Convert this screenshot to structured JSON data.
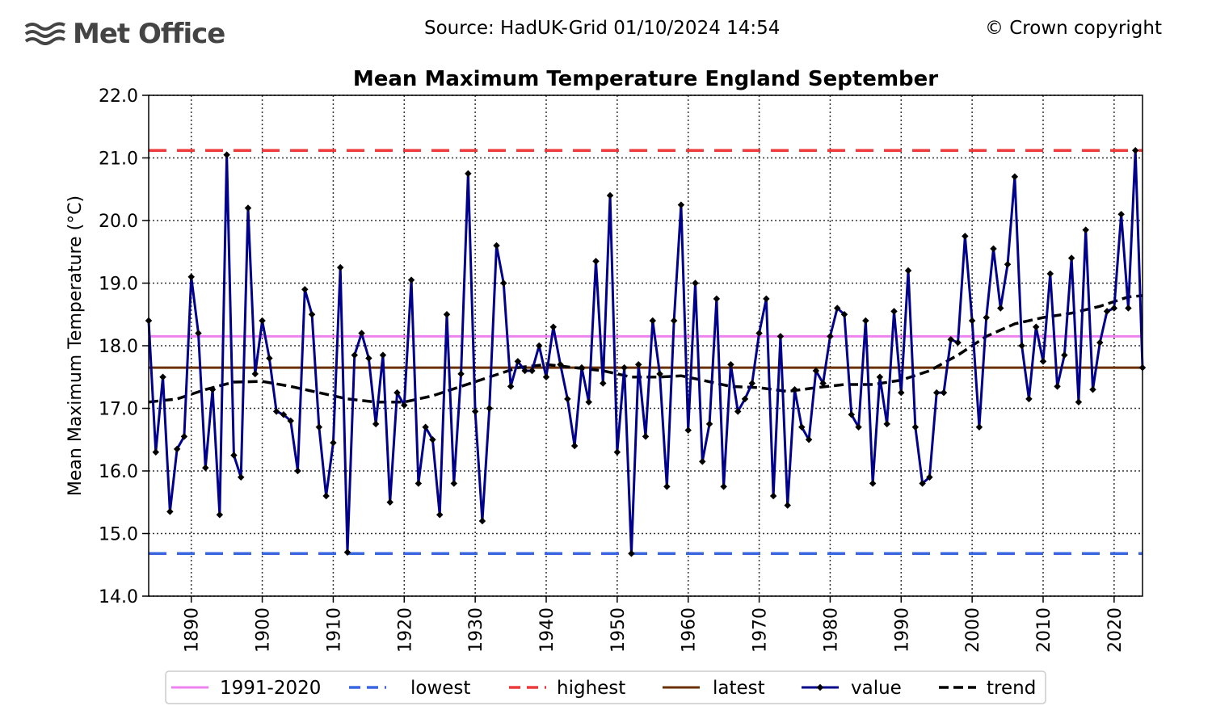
{
  "header": {
    "logo_text": "Met Office",
    "source": "Source: HadUK-Grid 01/10/2024 14:54",
    "copyright": "© Crown copyright"
  },
  "colors": {
    "baseline": "#ee82ee",
    "lowest": "#3a66e0",
    "highest": "#ee3a3a",
    "latest": "#6b3000",
    "value": "#00008b",
    "trend": "#000000"
  },
  "chart_data": {
    "type": "line",
    "title": "Mean Maximum Temperature England September",
    "xlabel": "",
    "ylabel": "Mean Maximum Temperature (°C)",
    "xlim": [
      1884,
      2024
    ],
    "ylim": [
      14.0,
      22.0
    ],
    "yticks": [
      "14.0",
      "15.0",
      "16.0",
      "17.0",
      "18.0",
      "19.0",
      "20.0",
      "21.0",
      "22.0"
    ],
    "xticks": [
      "1890",
      "1900",
      "1910",
      "1920",
      "1930",
      "1940",
      "1950",
      "1960",
      "1970",
      "1980",
      "1990",
      "2000",
      "2010",
      "2020"
    ],
    "grid": true,
    "legend_position": "bottom",
    "reference_lines": {
      "1991-2020": 18.15,
      "lowest": 14.68,
      "highest": 21.12,
      "latest": 17.65
    },
    "legend": [
      "1991-2020",
      "lowest",
      "highest",
      "latest",
      "value",
      "trend"
    ],
    "series": [
      {
        "name": "value",
        "start_year": 1884,
        "values": [
          18.4,
          16.3,
          17.5,
          15.35,
          16.35,
          16.55,
          19.1,
          18.2,
          16.05,
          17.3,
          15.3,
          21.05,
          16.25,
          15.9,
          20.2,
          17.55,
          18.4,
          17.8,
          16.95,
          16.9,
          16.8,
          16.0,
          18.9,
          18.5,
          16.7,
          15.6,
          16.45,
          19.25,
          14.7,
          17.85,
          18.2,
          17.8,
          16.75,
          17.85,
          15.5,
          17.25,
          17.05,
          19.05,
          15.8,
          16.7,
          16.5,
          15.3,
          18.5,
          15.8,
          17.55,
          20.75,
          16.95,
          15.2,
          17.0,
          19.6,
          19.0,
          17.35,
          17.75,
          17.6,
          17.6,
          18.0,
          17.5,
          18.3,
          17.7,
          17.15,
          16.4,
          17.65,
          17.1,
          19.35,
          17.4,
          20.4,
          16.3,
          17.65,
          14.68,
          17.7,
          16.55,
          18.4,
          17.55,
          15.75,
          18.4,
          20.25,
          16.65,
          19.0,
          16.15,
          16.75,
          18.75,
          15.75,
          17.7,
          16.95,
          17.15,
          17.4,
          18.2,
          18.75,
          15.6,
          18.15,
          15.45,
          17.3,
          16.7,
          16.5,
          17.6,
          17.4,
          18.15,
          18.6,
          18.5,
          16.9,
          16.7,
          18.4,
          15.8,
          17.5,
          16.75,
          18.55,
          17.25,
          19.2,
          16.7,
          15.8,
          15.9,
          17.25,
          17.25,
          18.1,
          18.05,
          19.75,
          18.4,
          16.7,
          18.45,
          19.55,
          18.6,
          19.3,
          20.7,
          18.0,
          17.15,
          18.3,
          17.75,
          19.15,
          17.35,
          17.85,
          19.4,
          17.1,
          19.85,
          17.3,
          18.05,
          18.55,
          18.6,
          20.1,
          18.6,
          21.12,
          17.65
        ]
      },
      {
        "name": "trend",
        "points": [
          [
            1884,
            17.1
          ],
          [
            1888,
            17.15
          ],
          [
            1892,
            17.3
          ],
          [
            1896,
            17.42
          ],
          [
            1900,
            17.43
          ],
          [
            1904,
            17.35
          ],
          [
            1908,
            17.25
          ],
          [
            1912,
            17.15
          ],
          [
            1916,
            17.1
          ],
          [
            1920,
            17.1
          ],
          [
            1924,
            17.2
          ],
          [
            1928,
            17.35
          ],
          [
            1932,
            17.5
          ],
          [
            1936,
            17.65
          ],
          [
            1940,
            17.7
          ],
          [
            1944,
            17.65
          ],
          [
            1948,
            17.6
          ],
          [
            1952,
            17.5
          ],
          [
            1956,
            17.5
          ],
          [
            1959,
            17.52
          ],
          [
            1962,
            17.45
          ],
          [
            1966,
            17.35
          ],
          [
            1970,
            17.33
          ],
          [
            1974,
            17.27
          ],
          [
            1978,
            17.33
          ],
          [
            1982,
            17.38
          ],
          [
            1986,
            17.38
          ],
          [
            1990,
            17.45
          ],
          [
            1994,
            17.6
          ],
          [
            1998,
            17.85
          ],
          [
            2002,
            18.15
          ],
          [
            2006,
            18.35
          ],
          [
            2010,
            18.45
          ],
          [
            2014,
            18.52
          ],
          [
            2018,
            18.63
          ],
          [
            2022,
            18.78
          ],
          [
            2024,
            18.8
          ]
        ]
      }
    ]
  }
}
